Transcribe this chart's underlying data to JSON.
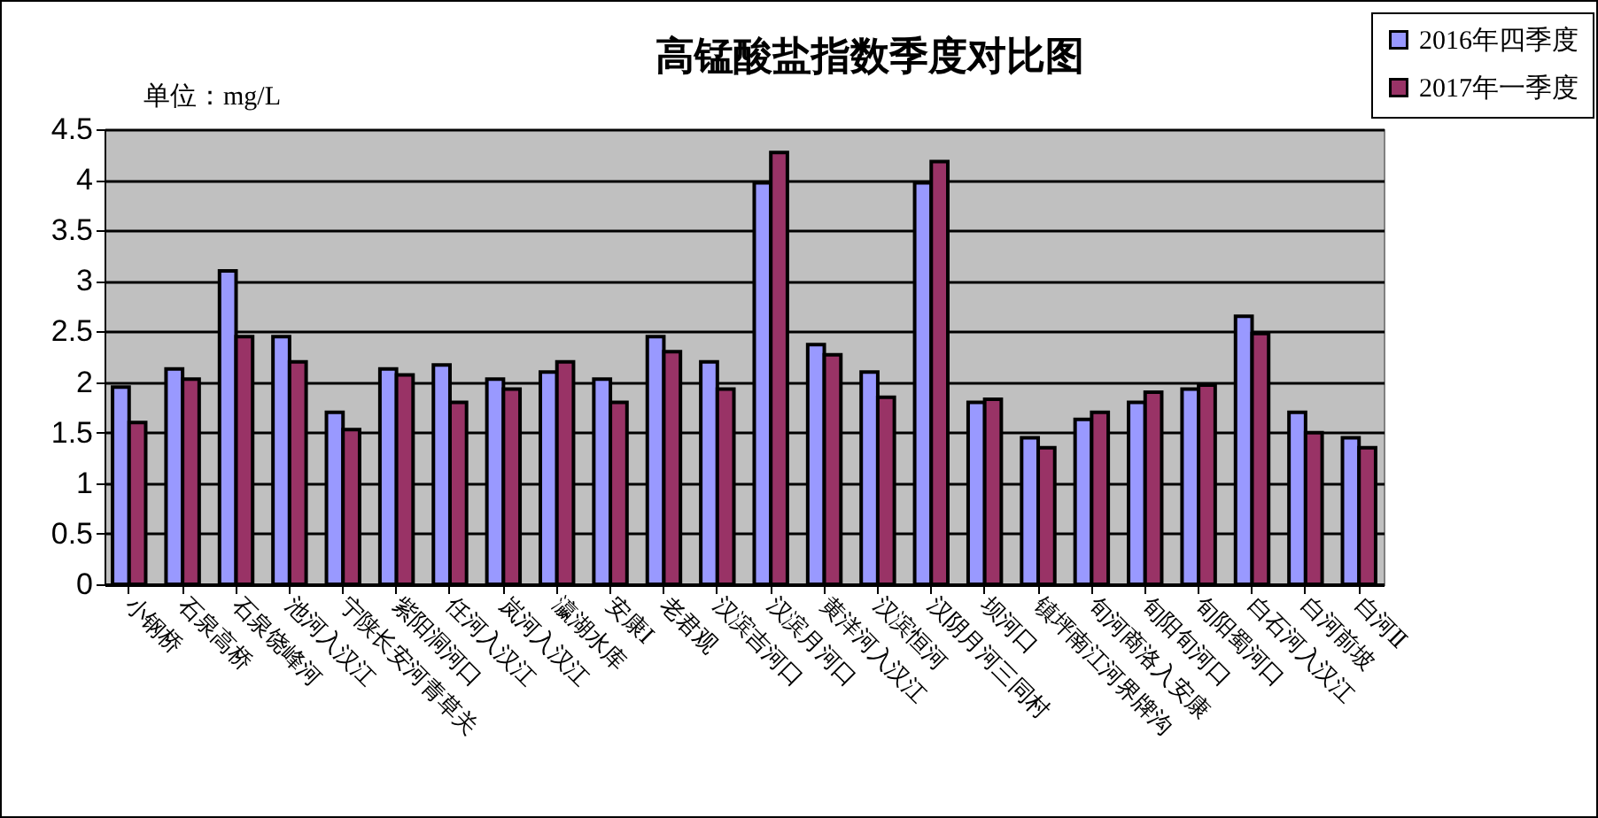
{
  "chart_data": {
    "type": "bar",
    "title": "高锰酸盐指数季度对比图",
    "annotations": [
      "单位：mg/L"
    ],
    "categories": [
      "小钢桥",
      "石泉高桥",
      "石泉饶峰河",
      "池河入汉江",
      "宁陕长安河青草关",
      "紫阳洞河口",
      "任河入汉江",
      "岚河入汉江",
      "瀛湖水库",
      "安康Ⅰ",
      "老君观",
      "汉滨吉河口",
      "汉滨月河口",
      "黄洋河入汉江",
      "汉滨恒河",
      "汉阴月河三同村",
      "坝河口",
      "镇坪南江河界牌沟",
      "旬河商洛入安康",
      "旬阳旬河口",
      "旬阳蜀河口",
      "白石河入汉江",
      "白河前坡",
      "白河Ⅱ"
    ],
    "series": [
      {
        "name": "2016年四季度",
        "color": "#9999ff",
        "values": [
          1.95,
          2.13,
          3.1,
          2.45,
          1.7,
          2.13,
          2.17,
          2.03,
          2.1,
          2.03,
          2.45,
          2.2,
          3.97,
          2.37,
          2.1,
          3.97,
          1.8,
          1.45,
          1.63,
          1.8,
          1.93,
          2.65,
          1.7,
          1.45
        ]
      },
      {
        "name": "2017年一季度",
        "color": "#993366",
        "values": [
          1.6,
          2.03,
          2.45,
          2.2,
          1.53,
          2.07,
          1.8,
          1.93,
          2.2,
          1.8,
          2.3,
          1.93,
          4.27,
          2.27,
          1.85,
          4.18,
          1.83,
          1.35,
          1.7,
          1.9,
          1.97,
          2.48,
          1.5,
          1.35
        ]
      }
    ],
    "ylim": [
      0,
      4.5
    ],
    "yticks": [
      0,
      0.5,
      1,
      1.5,
      2,
      2.5,
      3,
      3.5,
      4,
      4.5
    ],
    "grid": "y",
    "legend": "top right"
  }
}
